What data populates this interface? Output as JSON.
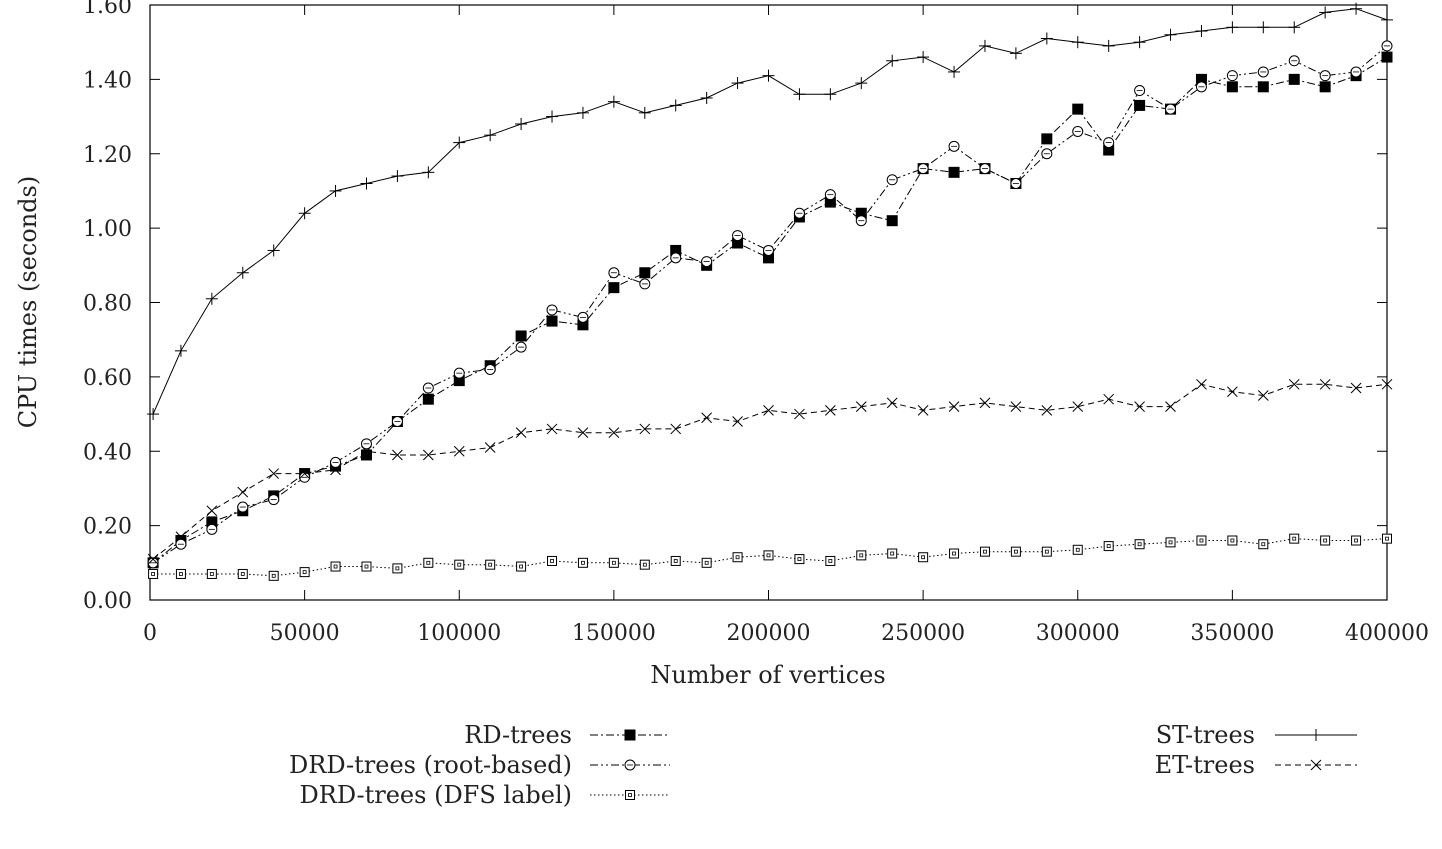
{
  "chart_data": {
    "type": "line",
    "title": "",
    "xlabel": "Number of vertices",
    "ylabel": "CPU times (seconds)",
    "xlim": [
      0,
      400000
    ],
    "ylim": [
      0,
      1.6
    ],
    "x_ticks": [
      "0",
      "50000",
      "100000",
      "150000",
      "200000",
      "250000",
      "300000",
      "350000",
      "400000"
    ],
    "y_ticks": [
      "0.00",
      "0.20",
      "0.40",
      "0.60",
      "0.80",
      "1.00",
      "1.20",
      "1.40",
      "1.60"
    ],
    "grid": false,
    "legend_placement": "below",
    "x": [
      1000,
      10000,
      20000,
      30000,
      40000,
      50000,
      60000,
      70000,
      80000,
      90000,
      100000,
      110000,
      120000,
      130000,
      140000,
      150000,
      160000,
      170000,
      180000,
      190000,
      200000,
      210000,
      220000,
      230000,
      240000,
      250000,
      260000,
      270000,
      280000,
      290000,
      300000,
      310000,
      320000,
      330000,
      340000,
      350000,
      360000,
      370000,
      380000,
      390000,
      400000
    ],
    "series": [
      {
        "name": "RD-trees",
        "marker": "filled-square",
        "dash": "dash-dot",
        "values": [
          0.1,
          0.16,
          0.21,
          0.24,
          0.28,
          0.34,
          0.36,
          0.39,
          0.48,
          0.54,
          0.59,
          0.63,
          0.71,
          0.75,
          0.74,
          0.84,
          0.88,
          0.94,
          0.9,
          0.96,
          0.92,
          1.03,
          1.07,
          1.04,
          1.02,
          1.16,
          1.15,
          1.16,
          1.12,
          1.24,
          1.32,
          1.21,
          1.33,
          1.32,
          1.4,
          1.38,
          1.38,
          1.4,
          1.38,
          1.41,
          1.46
        ]
      },
      {
        "name": "DRD-trees (root-based)",
        "marker": "open-circle",
        "dash": "dash-dot-dot",
        "values": [
          0.1,
          0.15,
          0.19,
          0.25,
          0.27,
          0.33,
          0.37,
          0.42,
          0.48,
          0.57,
          0.61,
          0.62,
          0.68,
          0.78,
          0.76,
          0.88,
          0.85,
          0.92,
          0.91,
          0.98,
          0.94,
          1.04,
          1.09,
          1.02,
          1.13,
          1.16,
          1.22,
          1.16,
          1.12,
          1.2,
          1.26,
          1.23,
          1.37,
          1.32,
          1.38,
          1.41,
          1.42,
          1.45,
          1.41,
          1.42,
          1.49
        ]
      },
      {
        "name": "DRD-trees (DFS label)",
        "marker": "open-square",
        "dash": "dotted",
        "values": [
          0.07,
          0.07,
          0.07,
          0.07,
          0.065,
          0.075,
          0.09,
          0.09,
          0.085,
          0.1,
          0.095,
          0.095,
          0.09,
          0.105,
          0.1,
          0.1,
          0.095,
          0.105,
          0.1,
          0.115,
          0.12,
          0.11,
          0.105,
          0.12,
          0.125,
          0.115,
          0.125,
          0.13,
          0.13,
          0.13,
          0.135,
          0.145,
          0.15,
          0.155,
          0.16,
          0.16,
          0.15,
          0.165,
          0.16,
          0.16,
          0.165
        ]
      },
      {
        "name": "ST-trees",
        "marker": "plus",
        "dash": "solid",
        "values": [
          0.5,
          0.67,
          0.81,
          0.88,
          0.94,
          1.04,
          1.1,
          1.12,
          1.14,
          1.15,
          1.23,
          1.25,
          1.28,
          1.3,
          1.31,
          1.34,
          1.31,
          1.33,
          1.35,
          1.39,
          1.41,
          1.36,
          1.36,
          1.39,
          1.45,
          1.46,
          1.42,
          1.49,
          1.47,
          1.51,
          1.5,
          1.49,
          1.5,
          1.52,
          1.53,
          1.54,
          1.54,
          1.54,
          1.58,
          1.59,
          1.56
        ]
      },
      {
        "name": "ET-trees",
        "marker": "cross",
        "dash": "dashed",
        "values": [
          0.11,
          0.17,
          0.24,
          0.29,
          0.34,
          0.34,
          0.35,
          0.4,
          0.39,
          0.39,
          0.4,
          0.41,
          0.45,
          0.46,
          0.45,
          0.45,
          0.46,
          0.46,
          0.49,
          0.48,
          0.51,
          0.5,
          0.51,
          0.52,
          0.53,
          0.51,
          0.52,
          0.53,
          0.52,
          0.51,
          0.52,
          0.54,
          0.52,
          0.52,
          0.58,
          0.56,
          0.55,
          0.58,
          0.58,
          0.57,
          0.58
        ]
      }
    ]
  }
}
